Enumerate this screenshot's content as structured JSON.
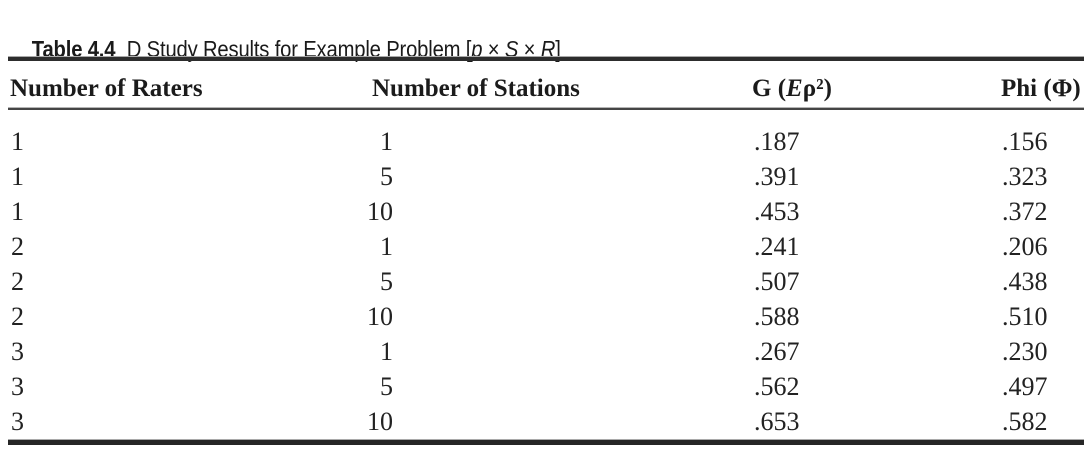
{
  "title": {
    "label": "Table 4.4",
    "text": "D Study Results for Example Problem ",
    "formula": {
      "open": "[",
      "var1": "p",
      "times1": " × ",
      "var2": "S",
      "times2": " × ",
      "var3": "R",
      "close": "]"
    }
  },
  "table": {
    "columns": [
      {
        "label": "Number of Raters"
      },
      {
        "label": "Number of Stations"
      },
      {
        "prefix": "G (",
        "italic": "E",
        "suffix": "ρ²)"
      },
      {
        "label": "Phi (Φ)"
      }
    ],
    "rows": [
      {
        "raters": "1",
        "stations": "1",
        "g": ".187",
        "phi": ".156"
      },
      {
        "raters": "1",
        "stations": "5",
        "g": ".391",
        "phi": ".323"
      },
      {
        "raters": "1",
        "stations": "10",
        "g": ".453",
        "phi": ".372"
      },
      {
        "raters": "2",
        "stations": "1",
        "g": ".241",
        "phi": ".206"
      },
      {
        "raters": "2",
        "stations": "5",
        "g": ".507",
        "phi": ".438"
      },
      {
        "raters": "2",
        "stations": "10",
        "g": ".588",
        "phi": ".510"
      },
      {
        "raters": "3",
        "stations": "1",
        "g": ".267",
        "phi": ".230"
      },
      {
        "raters": "3",
        "stations": "5",
        "g": ".562",
        "phi": ".497"
      },
      {
        "raters": "3",
        "stations": "10",
        "g": ".653",
        "phi": ".582"
      }
    ]
  },
  "colors": {
    "background": "#ffffff",
    "text": "#1e1e1e",
    "rule_dark": "#2d2d2d",
    "rule_light": "#a9a9a9"
  }
}
